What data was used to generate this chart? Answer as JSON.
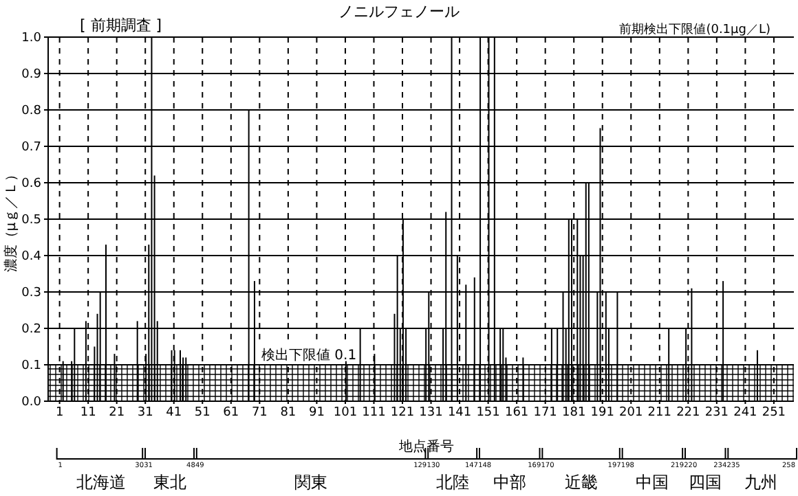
{
  "chart_data": {
    "type": "bar",
    "title": "ノニルフェノール",
    "xlabel": "地点番号",
    "ylabel": "濃度（μｇ／Ｌ）",
    "x": [
      2,
      5,
      6,
      10,
      13,
      14,
      15,
      17,
      20,
      28,
      31,
      32,
      33,
      34,
      35,
      40,
      41,
      43,
      44,
      45,
      67,
      69,
      101,
      106,
      111,
      118,
      119,
      120,
      121,
      122,
      129,
      130,
      135,
      136,
      138,
      140,
      143,
      146,
      148,
      151,
      153,
      155,
      156,
      157,
      163,
      173,
      175,
      177,
      178,
      179,
      180,
      182,
      183,
      184,
      185,
      186,
      189,
      190,
      192,
      193,
      196,
      214,
      220,
      222,
      233,
      245
    ],
    "values": [
      0.11,
      0.11,
      0.2,
      0.22,
      0.15,
      0.24,
      0.3,
      0.43,
      0.13,
      0.22,
      0.13,
      0.43,
      1.0,
      0.62,
      0.22,
      0.14,
      0.14,
      0.14,
      0.12,
      0.12,
      0.8,
      0.33,
      0.11,
      0.2,
      0.13,
      0.24,
      0.4,
      0.2,
      0.5,
      0.2,
      0.2,
      0.3,
      0.2,
      0.52,
      1.0,
      0.4,
      0.32,
      0.34,
      1.0,
      1.0,
      1.0,
      0.2,
      0.2,
      0.12,
      0.12,
      0.2,
      0.2,
      0.3,
      0.2,
      0.5,
      0.5,
      0.5,
      0.4,
      0.4,
      0.6,
      0.6,
      0.3,
      0.75,
      0.3,
      0.2,
      0.3,
      0.2,
      0.2,
      0.31,
      0.33,
      0.14
    ],
    "color": "#000000",
    "xlim": [
      -3,
      258
    ],
    "xticks": [
      1,
      11,
      21,
      31,
      41,
      51,
      61,
      71,
      81,
      91,
      101,
      111,
      121,
      131,
      141,
      151,
      161,
      171,
      181,
      191,
      201,
      211,
      221,
      231,
      241,
      251
    ],
    "ylim": [
      0,
      1
    ],
    "yticks": [
      {
        "value": 0,
        "label": "0.0"
      },
      0.1,
      0.2,
      0.3,
      0.4,
      0.5,
      0.6,
      0.7,
      0.8,
      0.9,
      {
        "value": 1,
        "label": "1.0"
      }
    ],
    "grid": true,
    "bands": [
      {
        "axis": "y",
        "from": 0,
        "to": 0.1,
        "label": "検出下限値 0.1",
        "color": "#000000"
      }
    ],
    "annotations": [
      "[ 前期調査 ]",
      "前期検出下限値(0.1μg／L)",
      "1",
      "30",
      "北海道",
      "31",
      "48",
      "東北",
      "49",
      "129",
      "関東",
      "130",
      "147",
      "北陸",
      "148",
      "169",
      "中部",
      "170",
      "197",
      "近畿",
      "198",
      "219",
      "中国",
      "220",
      "234",
      "四国",
      "235",
      "258",
      "九州"
    ]
  }
}
